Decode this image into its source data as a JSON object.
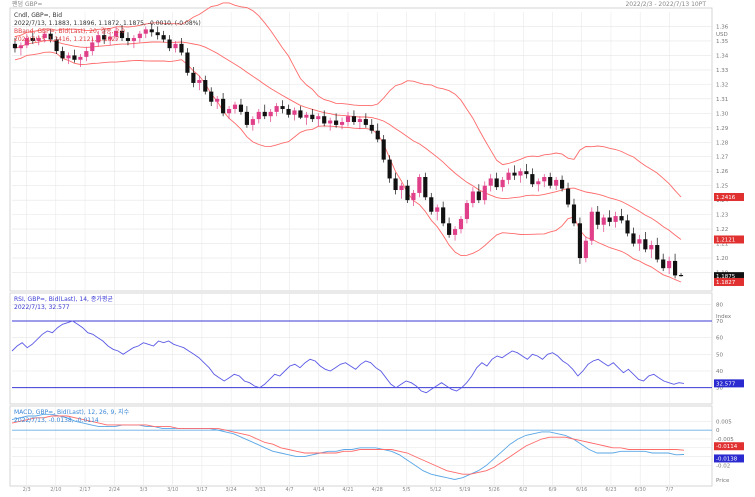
{
  "topbar": {
    "left": "팬덤 GBP=",
    "right": "2022/2/3 - 2022/7/13 10PT"
  },
  "colors": {
    "up": "#e0408a",
    "down": "#111111",
    "bband": "#ff6a6a",
    "rsi": "#5a5ae6",
    "rsi_levels": "#3a3ad6",
    "macd": "#5aa6e6",
    "signal": "#ff6a6a",
    "grid": "#e6e6e6",
    "axis": "#999999"
  },
  "chart_data": [
    {
      "type": "candlestick",
      "legend": [
        "Cndl, GBP=, Bid",
        "2022/7/13, 1.1883, 1.1896, 1.1872, 1.1875, -0.0010, (-0.08%)",
        "BBand, GBP=, Bid(Last), 20, 결종, 2.0",
        "2022/7/13, 1.2416, 1.2121, 1.1827"
      ],
      "y_ticks": [
        1.36,
        1.35,
        1.34,
        1.33,
        1.32,
        1.31,
        1.3,
        1.29,
        1.28,
        1.27,
        1.26,
        1.25,
        1.24,
        1.23,
        1.22,
        1.21,
        1.2,
        1.19
      ],
      "y_unit": "USD",
      "ylim": [
        1.18,
        1.37
      ],
      "last_price": "1.1875",
      "band_labels": {
        "upper": "1.2416",
        "middle": "1.2121",
        "lower": "1.1827"
      },
      "candles": [
        [
          1.348,
          1.352,
          1.342,
          1.345
        ],
        [
          1.345,
          1.349,
          1.34,
          1.347
        ],
        [
          1.347,
          1.355,
          1.345,
          1.352
        ],
        [
          1.352,
          1.356,
          1.348,
          1.35
        ],
        [
          1.35,
          1.354,
          1.347,
          1.352
        ],
        [
          1.352,
          1.357,
          1.349,
          1.355
        ],
        [
          1.355,
          1.358,
          1.349,
          1.351
        ],
        [
          1.351,
          1.353,
          1.341,
          1.343
        ],
        [
          1.343,
          1.346,
          1.336,
          1.338
        ],
        [
          1.338,
          1.342,
          1.334,
          1.34
        ],
        [
          1.34,
          1.344,
          1.335,
          1.337
        ],
        [
          1.337,
          1.341,
          1.332,
          1.339
        ],
        [
          1.339,
          1.346,
          1.336,
          1.343
        ],
        [
          1.343,
          1.352,
          1.34,
          1.349
        ],
        [
          1.349,
          1.357,
          1.346,
          1.354
        ],
        [
          1.354,
          1.358,
          1.348,
          1.351
        ],
        [
          1.351,
          1.356,
          1.347,
          1.353
        ],
        [
          1.353,
          1.36,
          1.35,
          1.357
        ],
        [
          1.357,
          1.361,
          1.35,
          1.352
        ],
        [
          1.352,
          1.356,
          1.347,
          1.35
        ],
        [
          1.35,
          1.354,
          1.345,
          1.352
        ],
        [
          1.352,
          1.357,
          1.349,
          1.355
        ],
        [
          1.355,
          1.36,
          1.352,
          1.358
        ],
        [
          1.358,
          1.362,
          1.353,
          1.356
        ],
        [
          1.356,
          1.36,
          1.351,
          1.354
        ],
        [
          1.354,
          1.357,
          1.349,
          1.351
        ],
        [
          1.351,
          1.354,
          1.343,
          1.345
        ],
        [
          1.345,
          1.35,
          1.342,
          1.348
        ],
        [
          1.348,
          1.352,
          1.34,
          1.342
        ],
        [
          1.342,
          1.345,
          1.326,
          1.328
        ],
        [
          1.328,
          1.332,
          1.318,
          1.321
        ],
        [
          1.321,
          1.326,
          1.316,
          1.323
        ],
        [
          1.323,
          1.326,
          1.313,
          1.315
        ],
        [
          1.315,
          1.318,
          1.305,
          1.308
        ],
        [
          1.308,
          1.312,
          1.303,
          1.31
        ],
        [
          1.31,
          1.314,
          1.298,
          1.3
        ],
        [
          1.3,
          1.305,
          1.296,
          1.303
        ],
        [
          1.303,
          1.308,
          1.3,
          1.306
        ],
        [
          1.306,
          1.31,
          1.299,
          1.301
        ],
        [
          1.301,
          1.305,
          1.29,
          1.292
        ],
        [
          1.292,
          1.298,
          1.288,
          1.296
        ],
        [
          1.296,
          1.303,
          1.293,
          1.301
        ],
        [
          1.301,
          1.306,
          1.296,
          1.298
        ],
        [
          1.298,
          1.303,
          1.294,
          1.301
        ],
        [
          1.301,
          1.307,
          1.298,
          1.305
        ],
        [
          1.305,
          1.309,
          1.3,
          1.303
        ],
        [
          1.303,
          1.306,
          1.297,
          1.299
        ],
        [
          1.299,
          1.304,
          1.295,
          1.302
        ],
        [
          1.302,
          1.305,
          1.296,
          1.297
        ],
        [
          1.297,
          1.301,
          1.292,
          1.299
        ],
        [
          1.299,
          1.303,
          1.294,
          1.296
        ],
        [
          1.296,
          1.3,
          1.291,
          1.298
        ],
        [
          1.298,
          1.302,
          1.291,
          1.293
        ],
        [
          1.293,
          1.297,
          1.288,
          1.295
        ],
        [
          1.295,
          1.3,
          1.29,
          1.292
        ],
        [
          1.292,
          1.297,
          1.289,
          1.294
        ],
        [
          1.294,
          1.301,
          1.291,
          1.298
        ],
        [
          1.298,
          1.302,
          1.292,
          1.294
        ],
        [
          1.294,
          1.298,
          1.289,
          1.296
        ],
        [
          1.296,
          1.3,
          1.29,
          1.292
        ],
        [
          1.292,
          1.296,
          1.286,
          1.288
        ],
        [
          1.288,
          1.293,
          1.28,
          1.282
        ],
        [
          1.282,
          1.285,
          1.266,
          1.268
        ],
        [
          1.268,
          1.271,
          1.252,
          1.255
        ],
        [
          1.255,
          1.259,
          1.244,
          1.247
        ],
        [
          1.247,
          1.252,
          1.241,
          1.25
        ],
        [
          1.25,
          1.254,
          1.238,
          1.24
        ],
        [
          1.24,
          1.247,
          1.236,
          1.245
        ],
        [
          1.245,
          1.258,
          1.242,
          1.256
        ],
        [
          1.256,
          1.259,
          1.24,
          1.242
        ],
        [
          1.242,
          1.245,
          1.23,
          1.232
        ],
        [
          1.232,
          1.237,
          1.226,
          1.235
        ],
        [
          1.235,
          1.239,
          1.222,
          1.224
        ],
        [
          1.224,
          1.228,
          1.214,
          1.216
        ],
        [
          1.216,
          1.222,
          1.212,
          1.22
        ],
        [
          1.22,
          1.229,
          1.217,
          1.227
        ],
        [
          1.227,
          1.24,
          1.224,
          1.238
        ],
        [
          1.238,
          1.249,
          1.235,
          1.246
        ],
        [
          1.246,
          1.251,
          1.238,
          1.24
        ],
        [
          1.24,
          1.253,
          1.237,
          1.25
        ],
        [
          1.25,
          1.258,
          1.246,
          1.255
        ],
        [
          1.255,
          1.259,
          1.247,
          1.249
        ],
        [
          1.249,
          1.256,
          1.246,
          1.254
        ],
        [
          1.254,
          1.262,
          1.251,
          1.259
        ],
        [
          1.259,
          1.264,
          1.254,
          1.257
        ],
        [
          1.257,
          1.262,
          1.252,
          1.26
        ],
        [
          1.26,
          1.265,
          1.255,
          1.258
        ],
        [
          1.258,
          1.262,
          1.249,
          1.251
        ],
        [
          1.251,
          1.255,
          1.246,
          1.253
        ],
        [
          1.253,
          1.258,
          1.249,
          1.256
        ],
        [
          1.256,
          1.259,
          1.248,
          1.25
        ],
        [
          1.25,
          1.256,
          1.247,
          1.254
        ],
        [
          1.254,
          1.257,
          1.246,
          1.248
        ],
        [
          1.248,
          1.252,
          1.235,
          1.237
        ],
        [
          1.237,
          1.241,
          1.222,
          1.224
        ],
        [
          1.224,
          1.228,
          1.196,
          1.2
        ],
        [
          1.2,
          1.215,
          1.197,
          1.212
        ],
        [
          1.212,
          1.235,
          1.209,
          1.232
        ],
        [
          1.232,
          1.236,
          1.22,
          1.223
        ],
        [
          1.223,
          1.23,
          1.218,
          1.228
        ],
        [
          1.228,
          1.233,
          1.222,
          1.225
        ],
        [
          1.225,
          1.232,
          1.221,
          1.229
        ],
        [
          1.229,
          1.234,
          1.224,
          1.226
        ],
        [
          1.226,
          1.23,
          1.215,
          1.217
        ],
        [
          1.217,
          1.221,
          1.208,
          1.21
        ],
        [
          1.21,
          1.216,
          1.205,
          1.213
        ],
        [
          1.213,
          1.218,
          1.204,
          1.206
        ],
        [
          1.206,
          1.212,
          1.2,
          1.209
        ],
        [
          1.209,
          1.214,
          1.197,
          1.199
        ],
        [
          1.199,
          1.203,
          1.191,
          1.193
        ],
        [
          1.193,
          1.201,
          1.189,
          1.198
        ],
        [
          1.198,
          1.203,
          1.186,
          1.188
        ],
        [
          1.1883,
          1.1896,
          1.1872,
          1.1875
        ]
      ]
    },
    {
      "type": "line",
      "legend": [
        "RSI, GBP=, Bid(Last), 14, 종가평균",
        "2022/7/13, 32.577"
      ],
      "y_ticks": [
        80,
        70,
        60,
        50,
        40,
        30
      ],
      "y_unit": "Index",
      "ylim": [
        22,
        85
      ],
      "levels": [
        70,
        30
      ],
      "last_value": "32.577",
      "series": [
        {
          "values": [
            52,
            55,
            57,
            54,
            56,
            59,
            62,
            64,
            63,
            66,
            68,
            69,
            70,
            68,
            66,
            63,
            62,
            60,
            58,
            55,
            53,
            52,
            50,
            52,
            54,
            55,
            57,
            56,
            55,
            58,
            57,
            58,
            56,
            55,
            54,
            52,
            50,
            48,
            45,
            42,
            38,
            36,
            34,
            36,
            38,
            37,
            34,
            33,
            31,
            30,
            32,
            35,
            38,
            37,
            40,
            43,
            44,
            42,
            45,
            47,
            46,
            43,
            41,
            40,
            42,
            44,
            45,
            43,
            41,
            44,
            46,
            45,
            42,
            40,
            36,
            32,
            30,
            32,
            34,
            33,
            31,
            28,
            27,
            29,
            31,
            33,
            31,
            29,
            28,
            30,
            33,
            37,
            42,
            45,
            43,
            47,
            49,
            48,
            50,
            52,
            51,
            49,
            47,
            50,
            49,
            47,
            50,
            51,
            49,
            46,
            44,
            41,
            37,
            40,
            44,
            46,
            47,
            45,
            43,
            45,
            42,
            39,
            41,
            38,
            35,
            34,
            37,
            38,
            36,
            34,
            33,
            32,
            33,
            32.577
          ]
        }
      ]
    },
    {
      "type": "line",
      "legend": [
        "MACD, GBP=, Bid(Last), 12, 26, 9, 지수",
        "2022/7/13, -0.0138, -0.0114"
      ],
      "y_ticks": [
        "0.005",
        "0",
        "-0.005",
        "-0.01",
        "-0.015",
        "-0.02"
      ],
      "y_unit": "Price",
      "ylim": [
        -0.03,
        0.012
      ],
      "zero_line": 0,
      "value_labels": [
        "-0.0114",
        "-0.0138"
      ],
      "series": [
        {
          "values": [
            0.006,
            0.007,
            0.008,
            0.008,
            0.009,
            0.009,
            0.008,
            0.007,
            0.005,
            0.004,
            0.003,
            0.002,
            0.002,
            0.002,
            0.003,
            0.003,
            0.003,
            0.002,
            0.002,
            0.001,
            0.001,
            0.001,
            0.001,
            0.001,
            0.001,
            0.001,
            0.0,
            -0.001,
            -0.002,
            -0.004,
            -0.006,
            -0.008,
            -0.01,
            -0.012,
            -0.013,
            -0.014,
            -0.015,
            -0.015,
            -0.014,
            -0.013,
            -0.012,
            -0.012,
            -0.011,
            -0.011,
            -0.01,
            -0.01,
            -0.01,
            -0.011,
            -0.012,
            -0.014,
            -0.017,
            -0.02,
            -0.023,
            -0.025,
            -0.026,
            -0.027,
            -0.028,
            -0.027,
            -0.025,
            -0.023,
            -0.02,
            -0.016,
            -0.012,
            -0.008,
            -0.005,
            -0.003,
            -0.002,
            -0.001,
            -0.001,
            -0.002,
            -0.003,
            -0.005,
            -0.008,
            -0.011,
            -0.013,
            -0.013,
            -0.013,
            -0.012,
            -0.012,
            -0.012,
            -0.012,
            -0.013,
            -0.013,
            -0.013,
            -0.014,
            -0.0138
          ]
        },
        {
          "values": [
            0.004,
            0.005,
            0.006,
            0.007,
            0.007,
            0.008,
            0.008,
            0.008,
            0.007,
            0.006,
            0.005,
            0.004,
            0.003,
            0.003,
            0.003,
            0.003,
            0.003,
            0.003,
            0.002,
            0.002,
            0.002,
            0.001,
            0.001,
            0.001,
            0.001,
            0.001,
            0.001,
            0.0,
            -0.001,
            -0.002,
            -0.003,
            -0.005,
            -0.007,
            -0.008,
            -0.01,
            -0.011,
            -0.012,
            -0.013,
            -0.013,
            -0.013,
            -0.013,
            -0.013,
            -0.012,
            -0.012,
            -0.011,
            -0.011,
            -0.011,
            -0.011,
            -0.011,
            -0.012,
            -0.013,
            -0.015,
            -0.017,
            -0.019,
            -0.021,
            -0.023,
            -0.024,
            -0.025,
            -0.025,
            -0.024,
            -0.023,
            -0.021,
            -0.018,
            -0.015,
            -0.012,
            -0.009,
            -0.007,
            -0.005,
            -0.004,
            -0.004,
            -0.004,
            -0.005,
            -0.006,
            -0.007,
            -0.008,
            -0.009,
            -0.01,
            -0.01,
            -0.011,
            -0.011,
            -0.011,
            -0.011,
            -0.011,
            -0.011,
            -0.011,
            -0.0114
          ]
        }
      ]
    }
  ],
  "x_axis": {
    "labels": [
      "2/3",
      "2/10",
      "2/17",
      "2/24",
      "3/3",
      "3/10",
      "3/17",
      "3/24",
      "3/31",
      "4/7",
      "4/14",
      "4/21",
      "4/28",
      "5/5",
      "5/12",
      "5/19",
      "5/26",
      "6/2",
      "6/9",
      "6/16",
      "6/23",
      "6/30",
      "7/7"
    ]
  }
}
